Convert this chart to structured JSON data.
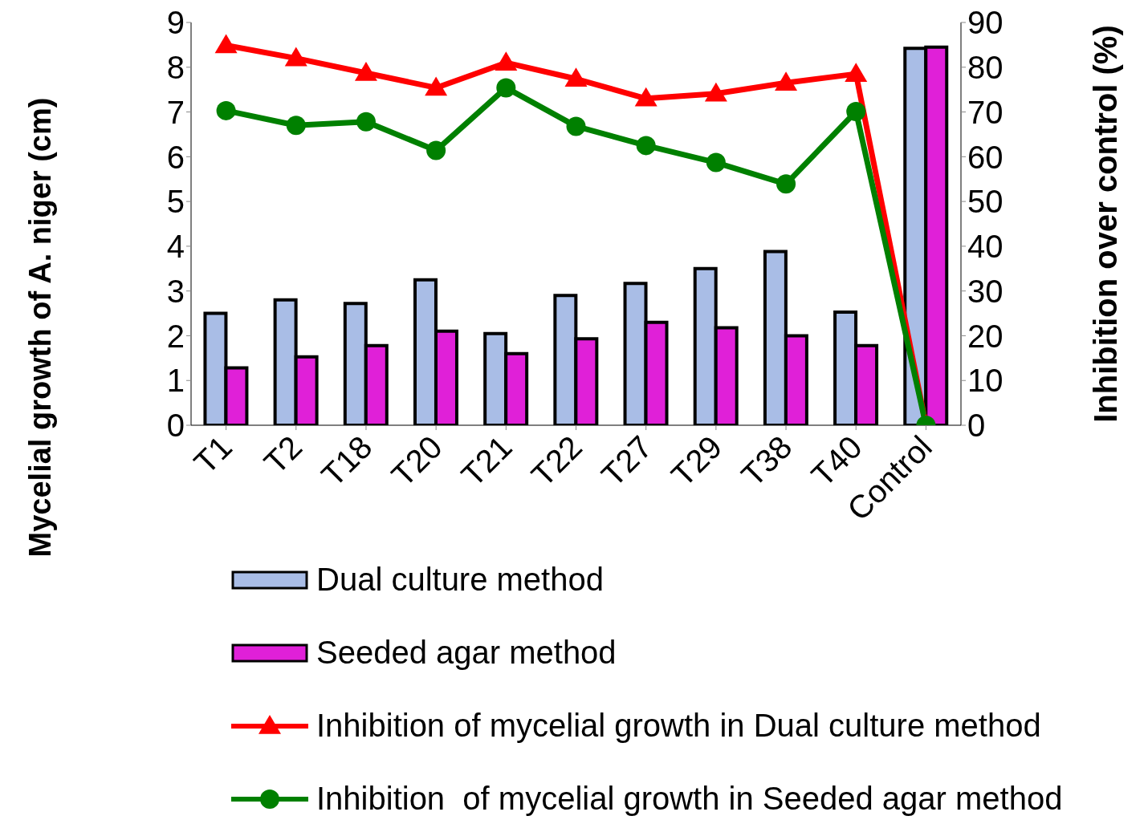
{
  "chart_data": {
    "type": "bar",
    "ylabel": "Mycelial growth of A. niger (cm)",
    "y2label": "Inhibition over control (%)",
    "categories": [
      "T1",
      "T2",
      "T18",
      "T20",
      "T21",
      "T22",
      "T27",
      "T29",
      "T38",
      "T40",
      "Control"
    ],
    "series": [
      {
        "name": "Dual culture method",
        "color": "#a9bde6",
        "values": [
          2.5,
          2.8,
          2.72,
          3.25,
          2.05,
          2.9,
          3.17,
          3.5,
          3.88,
          2.53,
          8.42
        ]
      },
      {
        "name": "Seeded agar method",
        "color": "#e020d8",
        "values": [
          1.28,
          1.53,
          1.78,
          2.1,
          1.6,
          1.93,
          2.3,
          2.18,
          2.0,
          1.78,
          8.45
        ]
      },
      {
        "name": "Inhibition of mycelial growth in Dual culture method",
        "type": "line",
        "axis": "y2",
        "marker": "triangle",
        "color": "#ff0000",
        "values": [
          84.9,
          82,
          78.7,
          75.4,
          81,
          77.4,
          73,
          74.1,
          76.5,
          78.5,
          0
        ]
      },
      {
        "name": "Inhibition  of mycelial growth in Seeded agar method",
        "type": "line",
        "axis": "y2",
        "marker": "circle",
        "color": "#008000",
        "values": [
          70.3,
          67,
          67.8,
          61.4,
          75.4,
          66.8,
          62.5,
          58.7,
          53.9,
          70.1,
          0
        ]
      }
    ],
    "ylim": [
      0,
      9
    ],
    "yticks": [
      0,
      1,
      2,
      3,
      4,
      5,
      6,
      7,
      8,
      9
    ],
    "y2lim": [
      0,
      90
    ],
    "y2ticks": [
      0,
      10,
      20,
      30,
      40,
      50,
      60,
      70,
      80,
      90
    ],
    "grid": false,
    "legend": "bottom"
  }
}
